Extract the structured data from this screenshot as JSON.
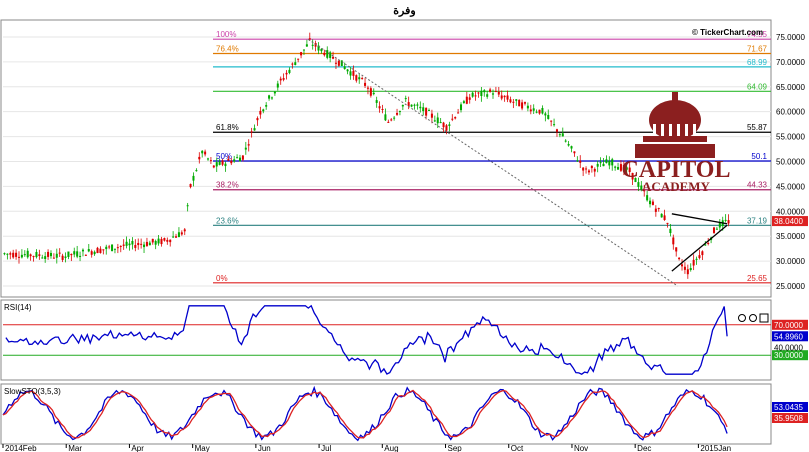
{
  "title": "وفرة",
  "watermark": "© TickerChart.com",
  "logo": {
    "line1": "CAPITOL",
    "line2": "ACADEMY",
    "color": "#8b1f1f"
  },
  "chart_data": [
    {
      "type": "candlestick",
      "name": "price",
      "ylim": [
        23,
        78
      ],
      "y_ticks": [
        "75.0000",
        "70.0000",
        "65.0000",
        "60.0000",
        "55.0000",
        "50.0000",
        "45.0000",
        "40.0000",
        "35.0000",
        "30.0000",
        "25.0000"
      ],
      "y_tick_values": [
        75,
        70,
        65,
        60,
        55,
        50,
        45,
        40,
        35,
        30,
        25
      ],
      "x_ticks": [
        "2014Feb",
        "Mar",
        "Apr",
        "May",
        "Jun",
        "Jul",
        "Aug",
        "Sep",
        "Oct",
        "Nov",
        "Dec",
        "2015Jan"
      ],
      "last_price": "38.0400",
      "last_value": 38.04,
      "fibonacci": [
        {
          "pct": "100%",
          "value": "74.55",
          "v": 74.55,
          "color": "#cc44aa"
        },
        {
          "pct": "76.4%",
          "value": "71.67",
          "v": 71.67,
          "color": "#e07a00"
        },
        {
          "pct": "",
          "value": "68.99",
          "v": 68.99,
          "color": "#22bbcc"
        },
        {
          "pct": "",
          "value": "64.09",
          "v": 64.09,
          "color": "#33bb33"
        },
        {
          "pct": "61.8%",
          "value": "55.87",
          "v": 55.87,
          "color": "#000000"
        },
        {
          "pct": "50%",
          "value": "50.1",
          "v": 50.1,
          "color": "#0000cc"
        },
        {
          "pct": "38.2%",
          "value": "44.33",
          "v": 44.33,
          "color": "#aa2266"
        },
        {
          "pct": "23.6%",
          "value": "37.19",
          "v": 37.19,
          "color": "#2a8080"
        },
        {
          "pct": "0%",
          "value": "25.65",
          "v": 25.65,
          "color": "#dd2222"
        }
      ]
    },
    {
      "type": "line",
      "name": "RSI(14)",
      "ylim": [
        0,
        100
      ],
      "levels": [
        {
          "label": "70.0000",
          "v": 70,
          "color": "#dd2222"
        },
        {
          "label": "30.0000",
          "v": 30,
          "color": "#22aa22"
        }
      ],
      "last_label": "54.8960",
      "last_value": 54.9,
      "trailing_label": "40.0000",
      "series_color": "#0000cc"
    },
    {
      "type": "line",
      "name": "SlowSTO(3,5,3)",
      "ylim": [
        0,
        100
      ],
      "last_labels": [
        {
          "label": "53.0435",
          "color": "#0000cc"
        },
        {
          "label": "35.9508",
          "color": "#dd2222"
        }
      ]
    }
  ]
}
